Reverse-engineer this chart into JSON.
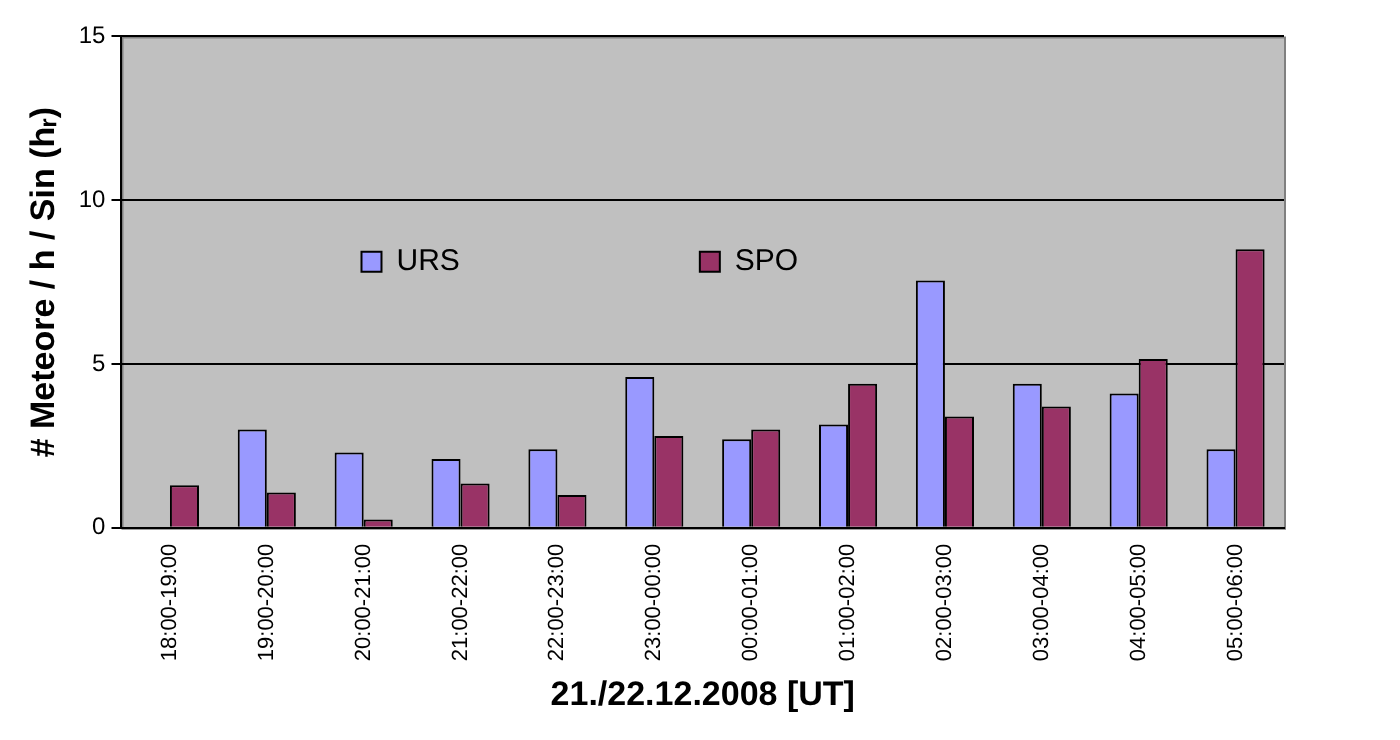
{
  "chart_data": {
    "type": "bar",
    "xlabel": "21./22.12.2008 [UT]",
    "ylabel": "# Meteore / h / Sin (hᵣ)",
    "categories": [
      "18:00-19:00",
      "19:00-20:00",
      "20:00-21:00",
      "21:00-22:00",
      "22:00-23:00",
      "23:00-00:00",
      "00:00-01:00",
      "01:00-02:00",
      "02:00-03:00",
      "03:00-04:00",
      "04:00-05:00",
      "05:00-06:00"
    ],
    "series": [
      {
        "name": "URS",
        "color": "#9999ff",
        "values": [
          null,
          3.0,
          2.3,
          2.1,
          2.4,
          4.6,
          2.7,
          3.15,
          7.55,
          4.4,
          4.1,
          2.4
        ]
      },
      {
        "name": "SPO",
        "color": "#993366",
        "values": [
          1.3,
          1.08,
          0.25,
          1.35,
          1.0,
          2.8,
          3.0,
          4.4,
          3.4,
          3.7,
          5.15,
          8.5
        ]
      }
    ],
    "ylim": [
      0,
      15
    ],
    "yticks": [
      0,
      5,
      10,
      15
    ],
    "grid": "y",
    "legend": "top"
  }
}
